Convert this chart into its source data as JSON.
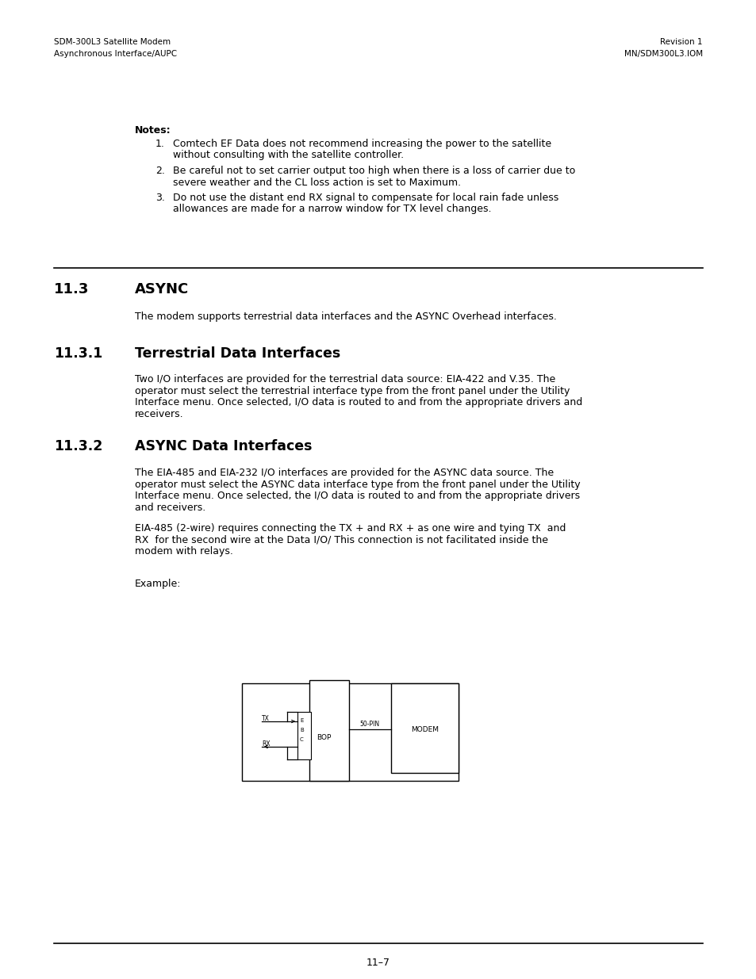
{
  "bg_color": "#ffffff",
  "header_left_line1": "SDM-300L3 Satellite Modem",
  "header_left_line2": "Asynchronous Interface/AUPC",
  "header_right_line1": "Revision 1",
  "header_right_line2": "MN/SDM300L3.IOM",
  "footer_text": "11–7",
  "notes_label": "Notes:",
  "notes": [
    "Comtech EF Data does not recommend increasing the power to the satellite\nwithout consulting with the satellite controller.",
    "Be careful not to set carrier output too high when there is a loss of carrier due to\nsevere weather and the CL loss action is set to Maximum.",
    "Do not use the distant end RX signal to compensate for local rain fade unless\nallowances are made for a narrow window for TX level changes."
  ],
  "section_11_3_num": "11.3",
  "section_11_3_title": "ASYNC",
  "section_11_3_body": "The modem supports terrestrial data interfaces and the ASYNC Overhead interfaces.",
  "section_11_3_1_num": "11.3.1",
  "section_11_3_1_title": "Terrestrial Data Interfaces",
  "section_11_3_1_body": "Two I/O interfaces are provided for the terrestrial data source: EIA-422 and V.35. The\noperator must select the terrestrial interface type from the front panel under the Utility\nInterface menu. Once selected, I/O data is routed to and from the appropriate drivers and\nreceivers.",
  "section_11_3_2_num": "11.3.2",
  "section_11_3_2_title": "ASYNC Data Interfaces",
  "section_11_3_2_body1": "The EIA-485 and EIA-232 I/O interfaces are provided for the ASYNC data source. The\noperator must select the ASYNC data interface type from the front panel under the Utility\nInterface menu. Once selected, the I/O data is routed to and from the appropriate drivers\nand receivers.",
  "section_11_3_2_body2": "EIA-485 (2-wire) requires connecting the TX + and RX + as one wire and tying TX  and\nRX  for the second wire at the Data I/O/ This connection is not facilitated inside the\nmodem with relays.",
  "example_label": "Example:"
}
